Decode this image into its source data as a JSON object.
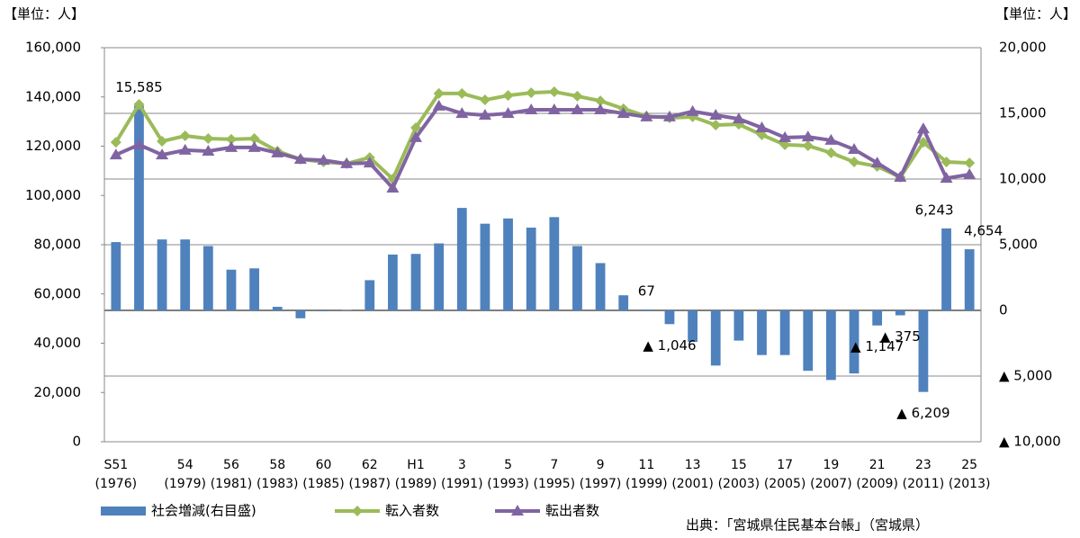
{
  "chart_data": {
    "type": "combo",
    "unit_left": "【単位：人】",
    "unit_right": "【単位：人】",
    "source": "出典：「宮城県住民基本台帳」（宮城県）",
    "categories": [
      "S51",
      null,
      null,
      "54",
      null,
      "56",
      null,
      "58",
      null,
      "60",
      null,
      "62",
      null,
      "H1",
      null,
      "3",
      null,
      "5",
      null,
      "7",
      null,
      "9",
      null,
      "11",
      null,
      "13",
      null,
      "15",
      null,
      "17",
      null,
      "19",
      null,
      "21",
      null,
      "23",
      null,
      "25"
    ],
    "category_sublabels": [
      "(1976)",
      null,
      null,
      "(1979)",
      null,
      "(1981)",
      null,
      "(1983)",
      null,
      "(1985)",
      null,
      "(1987)",
      null,
      "(1989)",
      null,
      "(1991)",
      null,
      "(1993)",
      null,
      "(1995)",
      null,
      "(1997)",
      null,
      "(1999)",
      null,
      "(2001)",
      null,
      "(2003)",
      null,
      "(2005)",
      null,
      "(2007)",
      null,
      "(2009)",
      null,
      "(2011)",
      null,
      "(2013)"
    ],
    "ylim": [
      0,
      160000
    ],
    "yticks": [
      0,
      {
        "value": 20000,
        "label": "20,000"
      },
      {
        "value": 40000,
        "label": "40,000"
      },
      {
        "value": 60000,
        "label": "60,000"
      },
      {
        "value": 80000,
        "label": "80,000"
      },
      {
        "value": 100000,
        "label": "100,000"
      },
      {
        "value": 120000,
        "label": "120,000"
      },
      {
        "value": 140000,
        "label": "140,000"
      },
      {
        "value": 160000,
        "label": "160,000"
      }
    ],
    "y2lim": [
      -10000,
      20000
    ],
    "y2ticks": [
      {
        "value": -10000,
        "label": "▲ 10,000"
      },
      {
        "value": -5000,
        "label": "▲ 5,000"
      },
      0,
      {
        "value": 5000,
        "label": "5,000"
      },
      {
        "value": 10000,
        "label": "10,000"
      },
      {
        "value": 15000,
        "label": "15,000"
      },
      {
        "value": 20000,
        "label": "20,000"
      }
    ],
    "grid": true,
    "series": [
      {
        "name": "社会増減(右目盛)",
        "type": "bar",
        "axis": "y2",
        "color": "#4f81bd",
        "values": [
          5200,
          15585,
          5400,
          5400,
          4900,
          3100,
          3200,
          270,
          -600,
          -70,
          30,
          2300,
          4250,
          4300,
          5100,
          7800,
          6600,
          7000,
          6300,
          7100,
          4900,
          3600,
          1150,
          67,
          -1046,
          -2400,
          -4200,
          -2300,
          -3400,
          -3400,
          -4600,
          -5300,
          -4800,
          -1147,
          -375,
          -6209,
          6243,
          4654
        ],
        "value_labels": [
          null,
          "15,585",
          null,
          null,
          null,
          null,
          null,
          null,
          null,
          null,
          null,
          null,
          null,
          null,
          null,
          null,
          null,
          null,
          null,
          null,
          null,
          null,
          null,
          "67",
          "▲ 1,046",
          null,
          null,
          null,
          null,
          null,
          null,
          null,
          null,
          "▲ 1,147",
          "▲ 375",
          "▲ 6,209",
          "6,243",
          "4,654"
        ]
      },
      {
        "name": "転入者数",
        "type": "line",
        "marker": "diamond",
        "color": "#9bbb59",
        "values": [
          121600,
          137000,
          122000,
          124200,
          123100,
          122800,
          123100,
          118000,
          114700,
          113600,
          112900,
          115400,
          106700,
          127500,
          141400,
          141400,
          138800,
          140600,
          141700,
          142100,
          140300,
          138400,
          135200,
          132200,
          131500,
          131900,
          128600,
          128900,
          124600,
          120600,
          120200,
          117300,
          113600,
          111800,
          107400,
          121600,
          113600,
          113200
        ]
      },
      {
        "name": "転出者数",
        "type": "line",
        "marker": "triangle",
        "color": "#8064a2",
        "values": [
          116500,
          120600,
          116500,
          118400,
          118000,
          119500,
          119500,
          117300,
          114700,
          114300,
          112900,
          113200,
          103000,
          123500,
          136300,
          133300,
          132600,
          133300,
          134800,
          134800,
          134800,
          134800,
          133300,
          131900,
          131900,
          134100,
          132600,
          131100,
          127500,
          123500,
          123800,
          122400,
          118700,
          113200,
          107400,
          127100,
          107000,
          108500
        ]
      }
    ]
  }
}
